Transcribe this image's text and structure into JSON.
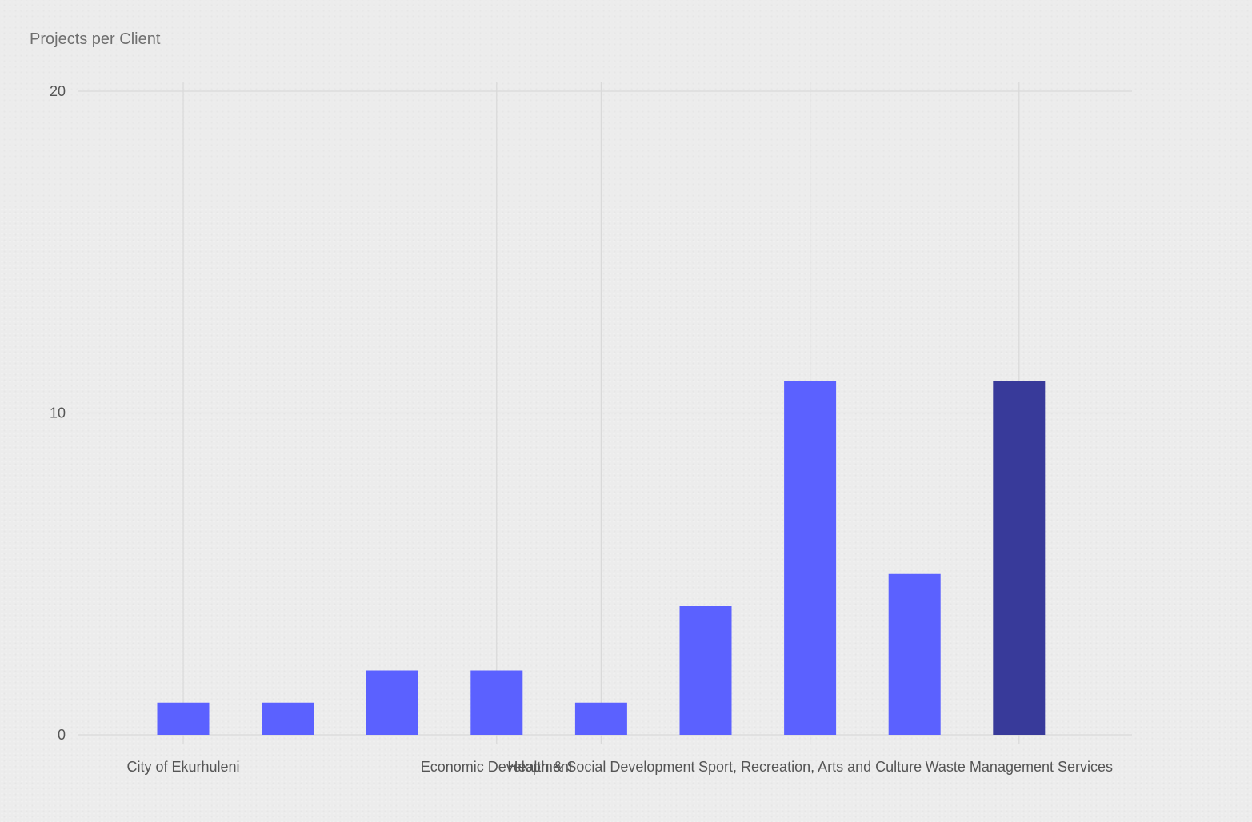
{
  "chart_data": {
    "type": "bar",
    "title": "Projects per Client",
    "xlabel": "",
    "ylabel": "",
    "ylim": [
      0,
      20
    ],
    "y_ticks": [
      0,
      10,
      20
    ],
    "grid": true,
    "legend": "none",
    "categories": [
      "City of Ekurhuleni",
      "",
      "",
      "Economic Development",
      "Health & Social Development",
      "",
      "Sport, Recreation, Arts and Culture",
      "",
      "Waste Management Services"
    ],
    "values": [
      1,
      1,
      2,
      2,
      1,
      4,
      11,
      5,
      11
    ],
    "colors": {
      "bar": "#5b61ff",
      "bar_highlight": "#383a9a"
    },
    "highlight_index": 8
  }
}
